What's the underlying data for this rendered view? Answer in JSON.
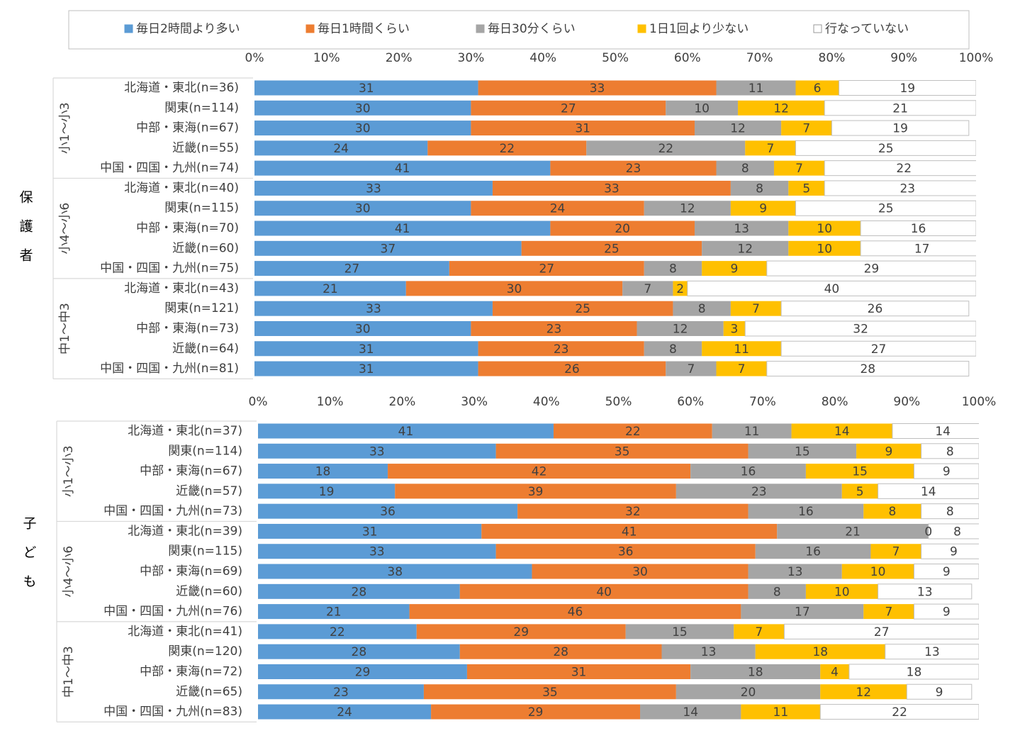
{
  "chart_data": [
    {
      "type": "bar",
      "orientation": "horizontal",
      "stacked": true,
      "side_label": "保護者",
      "groups": [
        "小1～小3",
        "小4～小6",
        "中1～中3"
      ],
      "categories": [
        "北海道・東北(n=36)",
        "関東(n=114)",
        "中部・東海(n=67)",
        "近畿(n=55)",
        "中国・四国・九州(n=74)",
        "北海道・東北(n=40)",
        "関東(n=115)",
        "中部・東海(n=70)",
        "近畿(n=60)",
        "中国・四国・九州(n=75)",
        "北海道・東北(n=43)",
        "関東(n=121)",
        "中部・東海(n=73)",
        "近畿(n=64)",
        "中国・四国・九州(n=81)"
      ],
      "series": [
        {
          "name": "毎日2時間より多い",
          "color": "#5b9bd5",
          "values": [
            31,
            30,
            30,
            24,
            41,
            33,
            30,
            41,
            37,
            27,
            21,
            33,
            30,
            31,
            31
          ]
        },
        {
          "name": "毎日1時間くらい",
          "color": "#ed7d31",
          "values": [
            33,
            27,
            31,
            22,
            23,
            33,
            24,
            20,
            25,
            27,
            30,
            25,
            23,
            23,
            26
          ]
        },
        {
          "name": "毎日30分くらい",
          "color": "#a5a5a5",
          "values": [
            11,
            10,
            12,
            22,
            8,
            8,
            12,
            13,
            12,
            8,
            7,
            8,
            12,
            8,
            7
          ]
        },
        {
          "name": "1日1回より少ない",
          "color": "#ffc000",
          "values": [
            6,
            12,
            7,
            7,
            7,
            5,
            9,
            10,
            10,
            9,
            2,
            7,
            3,
            11,
            7
          ]
        },
        {
          "name": "行なっていない",
          "color": "#ffffff",
          "values": [
            19,
            21,
            19,
            25,
            22,
            23,
            25,
            16,
            17,
            29,
            40,
            26,
            32,
            27,
            28
          ]
        }
      ],
      "xlim": [
        0,
        100
      ],
      "xticks": [
        {
          "value": 0,
          "label": "0%"
        },
        {
          "value": 10,
          "label": "10%"
        },
        {
          "value": 20,
          "label": "20%"
        },
        {
          "value": 30,
          "label": "30%"
        },
        {
          "value": 40,
          "label": "40%"
        },
        {
          "value": 50,
          "label": "50%"
        },
        {
          "value": 60,
          "label": "60%"
        },
        {
          "value": 70,
          "label": "70%"
        },
        {
          "value": 80,
          "label": "80%"
        },
        {
          "value": 90,
          "label": "90%"
        },
        {
          "value": 100,
          "label": "100%"
        }
      ]
    },
    {
      "type": "bar",
      "orientation": "horizontal",
      "stacked": true,
      "side_label": "子ども",
      "groups": [
        "小1～小3",
        "小4～小6",
        "中1～中3"
      ],
      "categories": [
        "北海道・東北(n=37)",
        "関東(n=114)",
        "中部・東海(n=67)",
        "近畿(n=57)",
        "中国・四国・九州(n=73)",
        "北海道・東北(n=39)",
        "関東(n=115)",
        "中部・東海(n=69)",
        "近畿(n=60)",
        "中国・四国・九州(n=76)",
        "北海道・東北(n=41)",
        "関東(n=120)",
        "中部・東海(n=72)",
        "近畿(n=65)",
        "中国・四国・九州(n=83)"
      ],
      "series": [
        {
          "color": "#5b9bd5",
          "values": [
            41,
            33,
            18,
            19,
            36,
            31,
            33,
            38,
            28,
            21,
            22,
            28,
            29,
            23,
            24
          ]
        },
        {
          "color": "#ed7d31",
          "values": [
            22,
            35,
            42,
            39,
            32,
            41,
            36,
            30,
            40,
            46,
            29,
            28,
            31,
            35,
            29
          ]
        },
        {
          "color": "#a5a5a5",
          "values": [
            11,
            15,
            16,
            23,
            16,
            21,
            16,
            13,
            8,
            17,
            15,
            13,
            18,
            20,
            14
          ]
        },
        {
          "color": "#ffc000",
          "values": [
            14,
            9,
            15,
            5,
            8,
            0,
            7,
            10,
            10,
            7,
            7,
            18,
            4,
            12,
            11
          ]
        },
        {
          "color": "#ffffff",
          "values": [
            14,
            8,
            9,
            14,
            8,
            8,
            9,
            9,
            13,
            9,
            27,
            13,
            18,
            9,
            22
          ]
        }
      ],
      "xlim": [
        0,
        100
      ],
      "xticks": [
        {
          "value": 0,
          "label": "0%"
        },
        {
          "value": 10,
          "label": "10%"
        },
        {
          "value": 20,
          "label": "20%"
        },
        {
          "value": 30,
          "label": "30%"
        },
        {
          "value": 40,
          "label": "40%"
        },
        {
          "value": 50,
          "label": "50%"
        },
        {
          "value": 60,
          "label": "60%"
        },
        {
          "value": 70,
          "label": "70%"
        },
        {
          "value": 80,
          "label": "80%"
        },
        {
          "value": 90,
          "label": "90%"
        },
        {
          "value": 100,
          "label": "100%"
        }
      ]
    }
  ]
}
